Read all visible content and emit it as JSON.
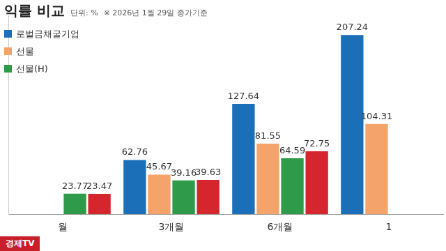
{
  "chart_data": {
    "type": "bar",
    "title": "익률 비교",
    "unit_note": "단위: %",
    "note": "※ 2026년 1월 29일 종가기준",
    "source": "경제TV",
    "categories": [
      "월",
      "3개월",
      "6개월",
      "1"
    ],
    "series": [
      {
        "name": "로벌금채굴기업",
        "color": "#1a6fb8",
        "values": [
          null,
          62.76,
          127.64,
          207.24
        ]
      },
      {
        "name": "선물",
        "color": "#f4a46a",
        "values": [
          null,
          45.67,
          81.55,
          104.31
        ]
      },
      {
        "name": "선물(H)",
        "color": "#2e9a4a",
        "values": [
          23.77,
          39.16,
          64.59,
          null
        ]
      },
      {
        "color": "#d4262c",
        "values": [
          23.47,
          39.63,
          72.75,
          null
        ]
      }
    ],
    "ylim": [
      0,
      230
    ],
    "grid": false,
    "data_labels": true,
    "tick_labels": "x",
    "legend": "top-left"
  }
}
